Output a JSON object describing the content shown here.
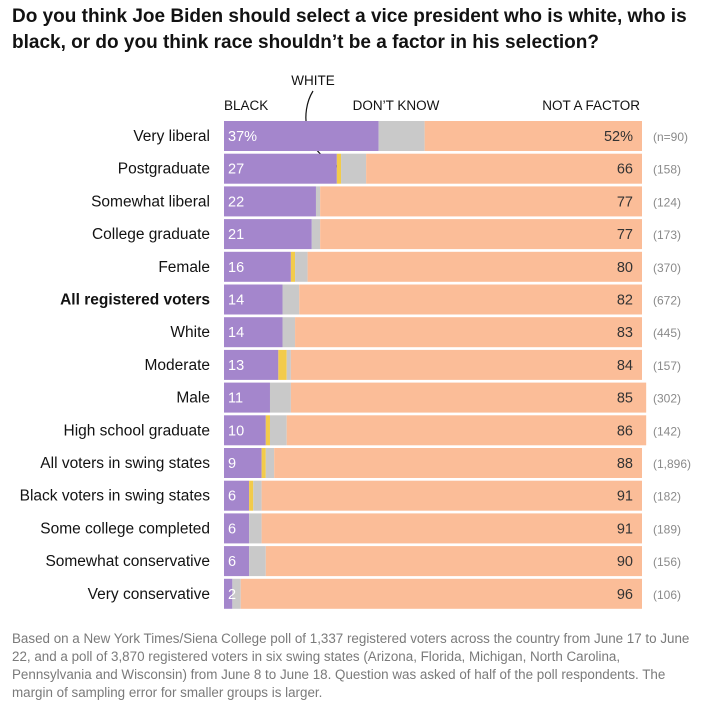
{
  "title": "Do you think Joe Biden should select a vice president who is white, who is black, or do you think race shouldn’t be a factor in his selection?",
  "note": "Based on a New York Times/Siena College poll of 1,337 registered voters across the country from June 17 to June 22, and a poll of 3,870 registered voters in six swing states (Arizona, Florida, Michigan, North Carolina, Pennsylvania and Wisconsin) from June 8 to June 18. Question was asked of half of the poll respondents. The margin of sampling error for smaller groups is larger.",
  "colors": {
    "black": "#a486cc",
    "white": "#f2cb4b",
    "dont_know": "#c9c9c9",
    "not_a_factor": "#fbbd98"
  },
  "chart_data": {
    "type": "bar",
    "stacked": true,
    "orientation": "horizontal",
    "xlim": [
      0,
      100
    ],
    "legend": [
      {
        "key": "black",
        "label": "BLACK"
      },
      {
        "key": "white",
        "label": "WHITE"
      },
      {
        "key": "dont_know",
        "label": "DON’T KNOW"
      },
      {
        "key": "not_a_factor",
        "label": "NOT A FACTOR"
      }
    ],
    "rows": [
      {
        "label": "Very liberal",
        "bold": false,
        "black": 37,
        "white": 0,
        "dont_know": 11,
        "not_a_factor": 52,
        "black_label": "37%",
        "nf_label": "52%",
        "n": "(n=90)"
      },
      {
        "label": "Postgraduate",
        "bold": false,
        "black": 27,
        "white": 1,
        "dont_know": 6,
        "not_a_factor": 66,
        "black_label": "27",
        "nf_label": "66",
        "n": "(158)"
      },
      {
        "label": "Somewhat liberal",
        "bold": false,
        "black": 22,
        "white": 0,
        "dont_know": 1,
        "not_a_factor": 77,
        "black_label": "22",
        "nf_label": "77",
        "n": "(124)"
      },
      {
        "label": "College graduate",
        "bold": false,
        "black": 21,
        "white": 0,
        "dont_know": 2,
        "not_a_factor": 77,
        "black_label": "21",
        "nf_label": "77",
        "n": "(173)"
      },
      {
        "label": "Female",
        "bold": false,
        "black": 16,
        "white": 1,
        "dont_know": 3,
        "not_a_factor": 80,
        "black_label": "16",
        "nf_label": "80",
        "n": "(370)"
      },
      {
        "label": "All registered voters",
        "bold": true,
        "black": 14,
        "white": 0,
        "dont_know": 4,
        "not_a_factor": 82,
        "black_label": "14",
        "nf_label": "82",
        "n": "(672)"
      },
      {
        "label": "White",
        "bold": false,
        "black": 14,
        "white": 0,
        "dont_know": 3,
        "not_a_factor": 83,
        "black_label": "14",
        "nf_label": "83",
        "n": "(445)"
      },
      {
        "label": "Moderate",
        "bold": false,
        "black": 13,
        "white": 2,
        "dont_know": 1,
        "not_a_factor": 84,
        "black_label": "13",
        "nf_label": "84",
        "n": "(157)"
      },
      {
        "label": "Male",
        "bold": false,
        "black": 11,
        "white": 0,
        "dont_know": 5,
        "not_a_factor": 85,
        "black_label": "11",
        "nf_label": "85",
        "n": "(302)"
      },
      {
        "label": "High school graduate",
        "bold": false,
        "black": 10,
        "white": 1,
        "dont_know": 4,
        "not_a_factor": 86,
        "black_label": "10",
        "nf_label": "86",
        "n": "(142)"
      },
      {
        "label": "All voters in swing states",
        "bold": false,
        "black": 9,
        "white": 1,
        "dont_know": 2,
        "not_a_factor": 88,
        "black_label": "9",
        "nf_label": "88",
        "n": "(1,896)"
      },
      {
        "label": "Black voters in swing states",
        "bold": false,
        "black": 6,
        "white": 1,
        "dont_know": 2,
        "not_a_factor": 91,
        "black_label": "6",
        "nf_label": "91",
        "n": "(182)"
      },
      {
        "label": "Some college completed",
        "bold": false,
        "black": 6,
        "white": 0,
        "dont_know": 3,
        "not_a_factor": 91,
        "black_label": "6",
        "nf_label": "91",
        "n": "(189)"
      },
      {
        "label": "Somewhat conservative",
        "bold": false,
        "black": 6,
        "white": 0,
        "dont_know": 4,
        "not_a_factor": 90,
        "black_label": "6",
        "nf_label": "90",
        "n": "(156)"
      },
      {
        "label": "Very conservative",
        "bold": false,
        "black": 2,
        "white": 0,
        "dont_know": 2,
        "not_a_factor": 96,
        "black_label": "2",
        "nf_label": "96",
        "n": "(106)"
      }
    ]
  }
}
